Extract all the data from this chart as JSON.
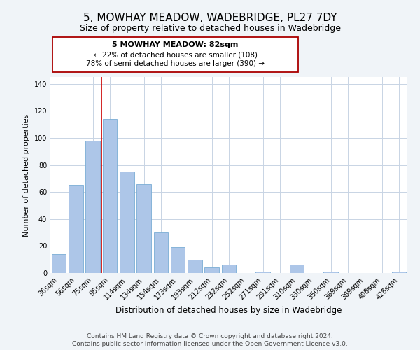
{
  "title": "5, MOWHAY MEADOW, WADEBRIDGE, PL27 7DY",
  "subtitle": "Size of property relative to detached houses in Wadebridge",
  "xlabel": "Distribution of detached houses by size in Wadebridge",
  "ylabel": "Number of detached properties",
  "bar_labels": [
    "36sqm",
    "56sqm",
    "75sqm",
    "95sqm",
    "114sqm",
    "134sqm",
    "154sqm",
    "173sqm",
    "193sqm",
    "212sqm",
    "232sqm",
    "252sqm",
    "271sqm",
    "291sqm",
    "310sqm",
    "330sqm",
    "350sqm",
    "369sqm",
    "389sqm",
    "408sqm",
    "428sqm"
  ],
  "bar_heights": [
    14,
    65,
    98,
    114,
    75,
    66,
    30,
    19,
    10,
    4,
    6,
    0,
    1,
    0,
    6,
    0,
    1,
    0,
    0,
    0,
    1
  ],
  "bar_color": "#adc6e8",
  "bar_edge_color": "#7aadd4",
  "vline_color": "#cc0000",
  "ylim": [
    0,
    145
  ],
  "yticks": [
    0,
    20,
    40,
    60,
    80,
    100,
    120,
    140
  ],
  "annotation_title": "5 MOWHAY MEADOW: 82sqm",
  "annotation_line1": "← 22% of detached houses are smaller (108)",
  "annotation_line2": "78% of semi-detached houses are larger (390) →",
  "footer_line1": "Contains HM Land Registry data © Crown copyright and database right 2024.",
  "footer_line2": "Contains public sector information licensed under the Open Government Licence v3.0.",
  "background_color": "#f0f4f8",
  "plot_background_color": "#ffffff",
  "grid_color": "#c8d4e4",
  "title_fontsize": 11,
  "subtitle_fontsize": 9,
  "xlabel_fontsize": 8.5,
  "ylabel_fontsize": 8,
  "tick_fontsize": 7,
  "footer_fontsize": 6.5
}
